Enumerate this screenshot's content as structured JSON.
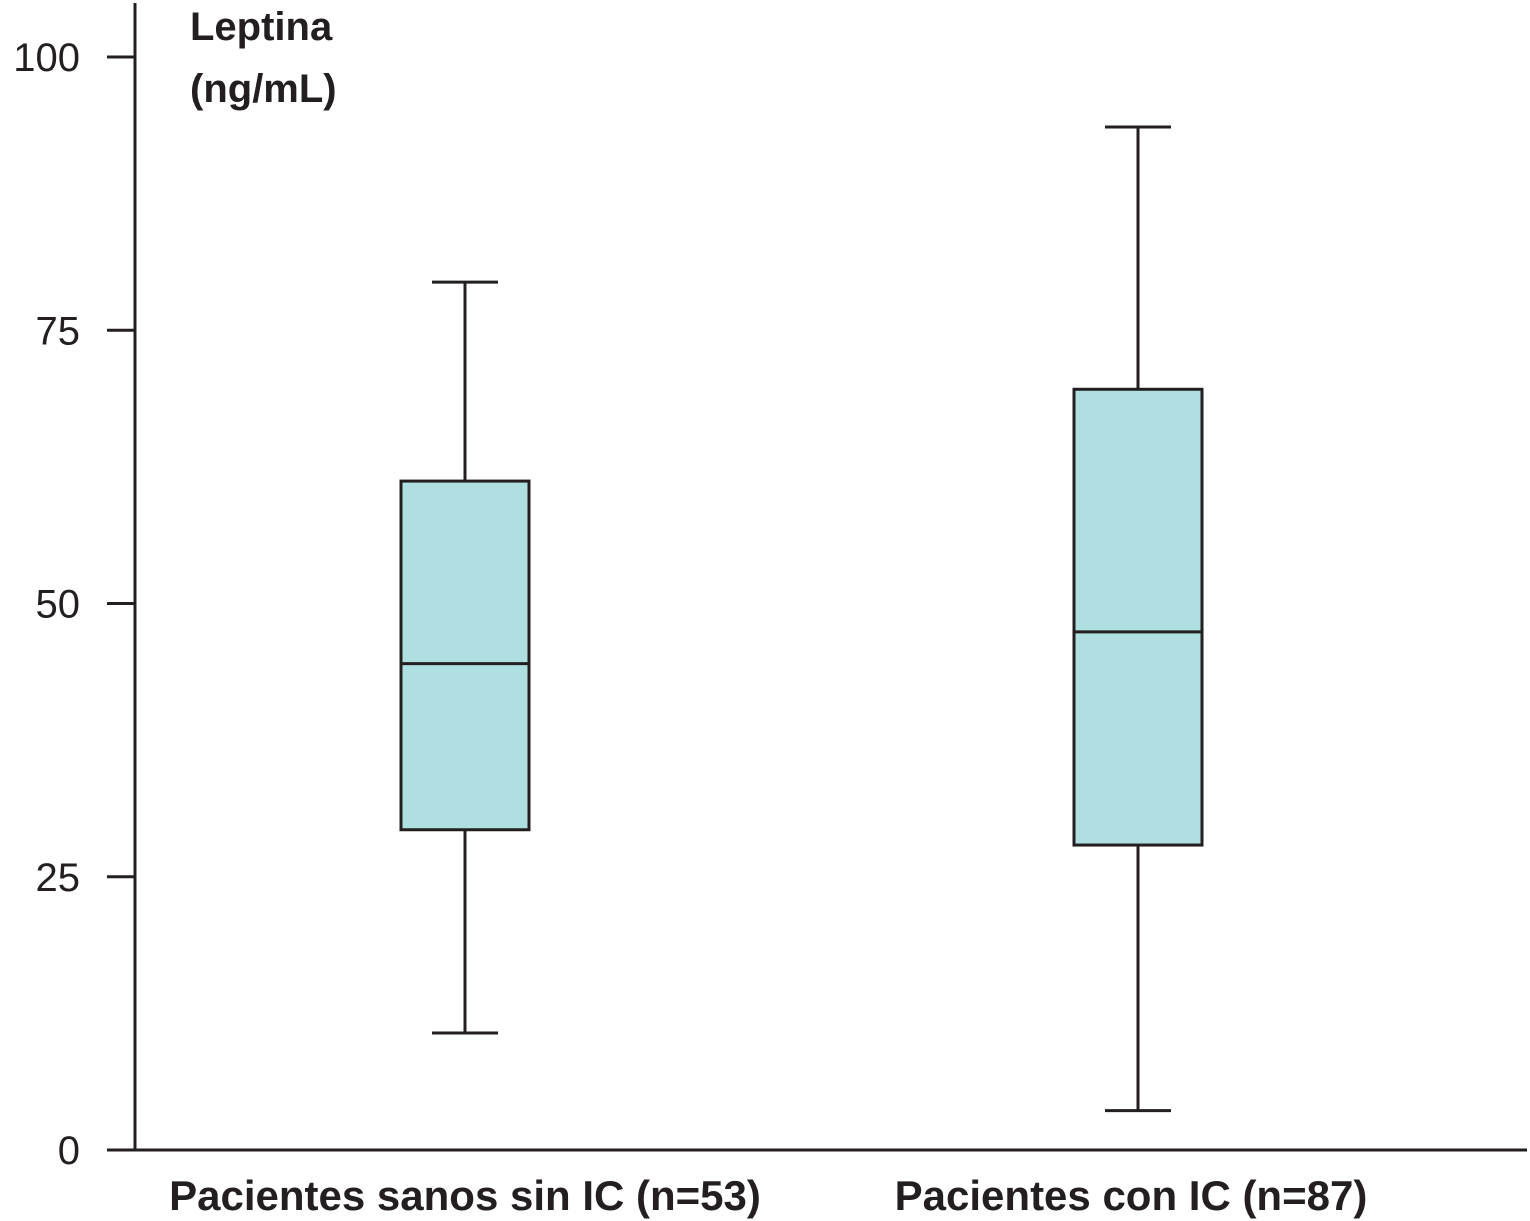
{
  "chart_data": {
    "type": "box",
    "ylabel_line1": "Leptina",
    "ylabel_line2": "(ng/mL)",
    "ylim": [
      0,
      100
    ],
    "yticks": [
      0,
      25,
      50,
      75,
      100
    ],
    "grid": false,
    "box_color": "#afdfe0",
    "line_color": "#231f20",
    "categories": [
      "Pacientes sanos sin IC (n=53)",
      "Pacientes con IC (n=87)"
    ],
    "boxes": [
      {
        "min": 10.7,
        "q1": 29.3,
        "median": 44.5,
        "q3": 61.2,
        "max": 79.4
      },
      {
        "min": 3.6,
        "q1": 27.9,
        "median": 47.4,
        "q3": 69.6,
        "max": 93.6
      }
    ]
  }
}
